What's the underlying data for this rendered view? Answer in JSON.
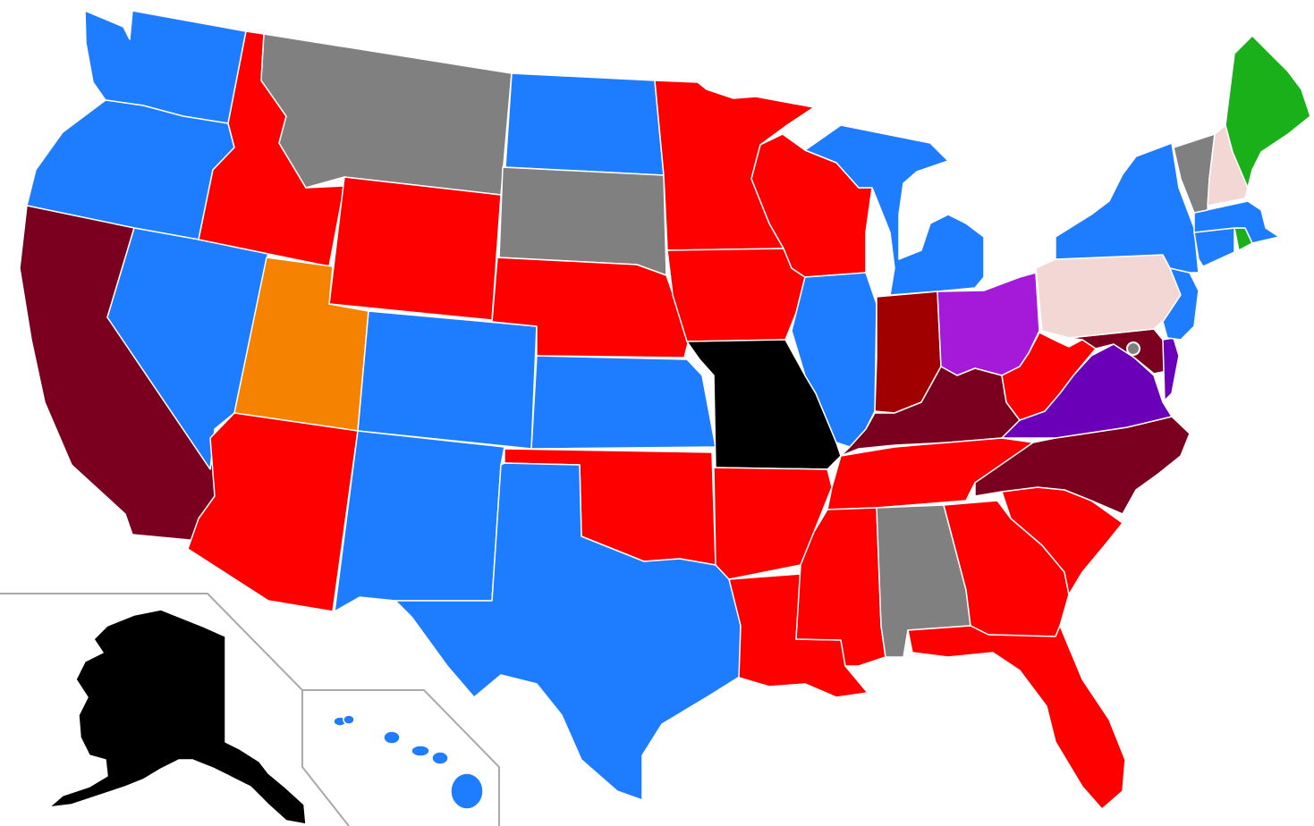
{
  "map": {
    "type": "choropleth",
    "region": "United States",
    "legend": [],
    "colors": {
      "blue": "#1e7cff",
      "red": "#ff0000",
      "gray": "#808080",
      "black": "#000000",
      "orange": "#f58200",
      "maroon": "#7b0020",
      "dark_red": "#a00000",
      "purple": "#a51ad8",
      "indigo": "#6a00b8",
      "pink": "#f2d7d5",
      "green": "#1ab01a",
      "dc_marker": "#808080"
    },
    "states": [
      {
        "id": "WA",
        "fill": "blue"
      },
      {
        "id": "OR",
        "fill": "blue"
      },
      {
        "id": "CA",
        "fill": "maroon"
      },
      {
        "id": "NV",
        "fill": "blue"
      },
      {
        "id": "ID",
        "fill": "red"
      },
      {
        "id": "MT",
        "fill": "gray"
      },
      {
        "id": "WY",
        "fill": "red"
      },
      {
        "id": "UT",
        "fill": "orange"
      },
      {
        "id": "AZ",
        "fill": "red"
      },
      {
        "id": "CO",
        "fill": "blue"
      },
      {
        "id": "NM",
        "fill": "blue"
      },
      {
        "id": "ND",
        "fill": "blue"
      },
      {
        "id": "SD",
        "fill": "gray"
      },
      {
        "id": "NE",
        "fill": "red"
      },
      {
        "id": "KS",
        "fill": "blue"
      },
      {
        "id": "OK",
        "fill": "red"
      },
      {
        "id": "TX",
        "fill": "blue"
      },
      {
        "id": "MN",
        "fill": "red"
      },
      {
        "id": "IA",
        "fill": "red"
      },
      {
        "id": "MO",
        "fill": "black"
      },
      {
        "id": "AR",
        "fill": "red"
      },
      {
        "id": "LA",
        "fill": "red"
      },
      {
        "id": "WI",
        "fill": "red"
      },
      {
        "id": "IL",
        "fill": "blue"
      },
      {
        "id": "MI",
        "fill": "blue"
      },
      {
        "id": "IN",
        "fill": "dark_red"
      },
      {
        "id": "OH",
        "fill": "purple"
      },
      {
        "id": "KY",
        "fill": "maroon"
      },
      {
        "id": "TN",
        "fill": "red"
      },
      {
        "id": "MS",
        "fill": "red"
      },
      {
        "id": "AL",
        "fill": "gray"
      },
      {
        "id": "GA",
        "fill": "red"
      },
      {
        "id": "FL",
        "fill": "red"
      },
      {
        "id": "SC",
        "fill": "red"
      },
      {
        "id": "NC",
        "fill": "maroon"
      },
      {
        "id": "VA",
        "fill": "indigo"
      },
      {
        "id": "WV",
        "fill": "red"
      },
      {
        "id": "MD",
        "fill": "maroon"
      },
      {
        "id": "DE",
        "fill": "indigo"
      },
      {
        "id": "PA",
        "fill": "pink"
      },
      {
        "id": "NJ",
        "fill": "blue"
      },
      {
        "id": "NY",
        "fill": "blue"
      },
      {
        "id": "CT",
        "fill": "blue"
      },
      {
        "id": "RI",
        "fill": "green"
      },
      {
        "id": "MA",
        "fill": "blue"
      },
      {
        "id": "VT",
        "fill": "gray"
      },
      {
        "id": "NH",
        "fill": "pink"
      },
      {
        "id": "ME",
        "fill": "green"
      },
      {
        "id": "AK",
        "fill": "black"
      },
      {
        "id": "HI",
        "fill": "blue"
      },
      {
        "id": "DC",
        "fill": "dc_marker"
      }
    ]
  }
}
